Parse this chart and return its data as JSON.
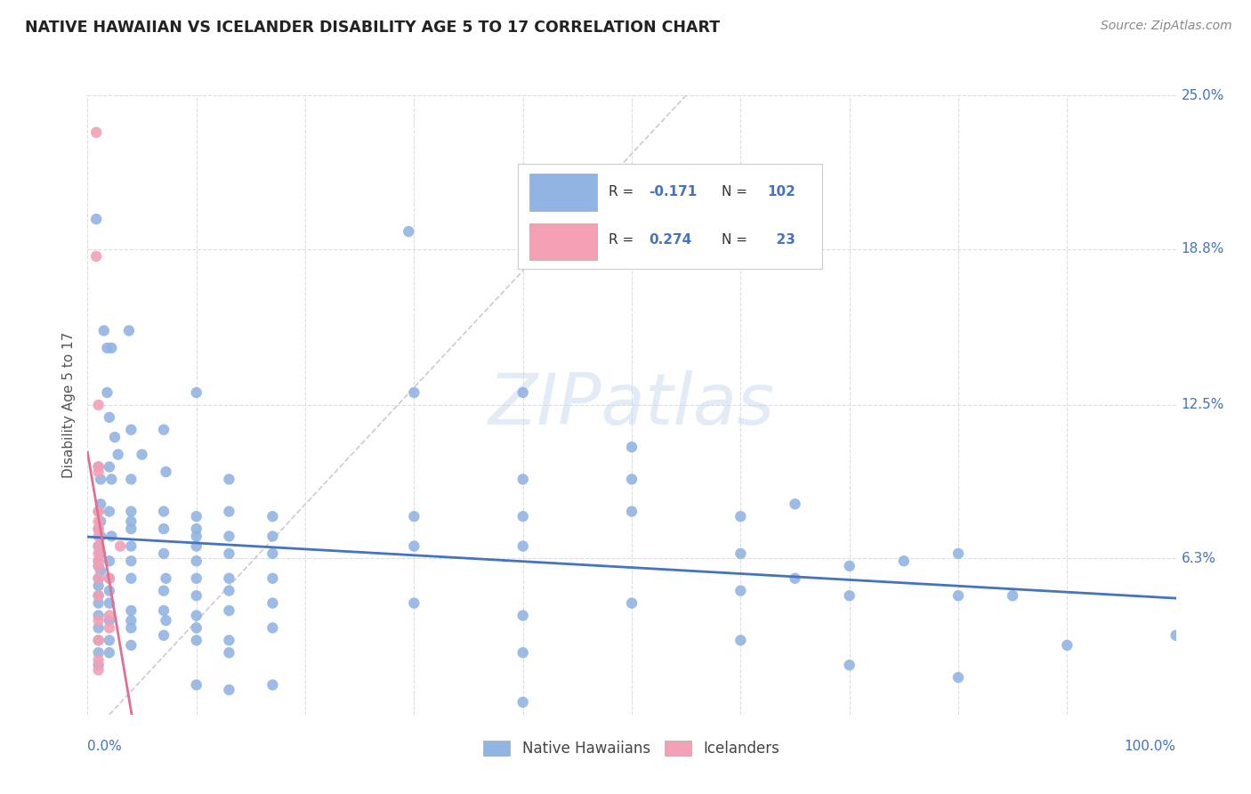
{
  "title": "NATIVE HAWAIIAN VS ICELANDER DISABILITY AGE 5 TO 17 CORRELATION CHART",
  "source": "Source: ZipAtlas.com",
  "ylabel": "Disability Age 5 to 17",
  "xlim": [
    0.0,
    1.0
  ],
  "ylim": [
    0.0,
    0.25
  ],
  "ytick_positions": [
    0.063,
    0.125,
    0.188,
    0.25
  ],
  "ytick_labels": [
    "6.3%",
    "12.5%",
    "18.8%",
    "25.0%"
  ],
  "xtick_positions": [
    0.0,
    0.1,
    0.2,
    0.3,
    0.4,
    0.5,
    0.6,
    0.7,
    0.8,
    0.9,
    1.0
  ],
  "legend_entries": [
    "Native Hawaiians",
    "Icelanders"
  ],
  "blue_color": "#92b4e3",
  "pink_color": "#f4a0b5",
  "blue_line_color": "#4472c4",
  "pink_line_color": "#e07090",
  "diag_color": "#cccccc",
  "grid_color": "#dddddd",
  "watermark": "ZIPatlas",
  "watermark_color": "#c8d8f0",
  "background_color": "#ffffff",
  "blue_scatter": [
    [
      0.008,
      0.2
    ],
    [
      0.015,
      0.155
    ],
    [
      0.018,
      0.148
    ],
    [
      0.022,
      0.148
    ],
    [
      0.018,
      0.13
    ],
    [
      0.02,
      0.12
    ],
    [
      0.025,
      0.112
    ],
    [
      0.028,
      0.105
    ],
    [
      0.01,
      0.1
    ],
    [
      0.02,
      0.1
    ],
    [
      0.012,
      0.095
    ],
    [
      0.022,
      0.095
    ],
    [
      0.012,
      0.085
    ],
    [
      0.01,
      0.082
    ],
    [
      0.02,
      0.082
    ],
    [
      0.012,
      0.078
    ],
    [
      0.01,
      0.075
    ],
    [
      0.012,
      0.072
    ],
    [
      0.022,
      0.072
    ],
    [
      0.01,
      0.068
    ],
    [
      0.012,
      0.065
    ],
    [
      0.01,
      0.062
    ],
    [
      0.02,
      0.062
    ],
    [
      0.01,
      0.06
    ],
    [
      0.012,
      0.058
    ],
    [
      0.01,
      0.055
    ],
    [
      0.02,
      0.055
    ],
    [
      0.01,
      0.052
    ],
    [
      0.02,
      0.05
    ],
    [
      0.01,
      0.048
    ],
    [
      0.01,
      0.045
    ],
    [
      0.02,
      0.045
    ],
    [
      0.01,
      0.04
    ],
    [
      0.02,
      0.038
    ],
    [
      0.01,
      0.035
    ],
    [
      0.01,
      0.03
    ],
    [
      0.02,
      0.03
    ],
    [
      0.01,
      0.025
    ],
    [
      0.02,
      0.025
    ],
    [
      0.01,
      0.02
    ],
    [
      0.038,
      0.155
    ],
    [
      0.04,
      0.115
    ],
    [
      0.04,
      0.095
    ],
    [
      0.04,
      0.082
    ],
    [
      0.04,
      0.078
    ],
    [
      0.04,
      0.075
    ],
    [
      0.04,
      0.068
    ],
    [
      0.04,
      0.062
    ],
    [
      0.04,
      0.055
    ],
    [
      0.04,
      0.042
    ],
    [
      0.04,
      0.038
    ],
    [
      0.04,
      0.035
    ],
    [
      0.04,
      0.028
    ],
    [
      0.05,
      0.105
    ],
    [
      0.07,
      0.115
    ],
    [
      0.072,
      0.098
    ],
    [
      0.07,
      0.082
    ],
    [
      0.07,
      0.075
    ],
    [
      0.07,
      0.065
    ],
    [
      0.072,
      0.055
    ],
    [
      0.07,
      0.05
    ],
    [
      0.07,
      0.042
    ],
    [
      0.072,
      0.038
    ],
    [
      0.07,
      0.032
    ],
    [
      0.1,
      0.13
    ],
    [
      0.1,
      0.08
    ],
    [
      0.1,
      0.075
    ],
    [
      0.1,
      0.072
    ],
    [
      0.1,
      0.068
    ],
    [
      0.1,
      0.062
    ],
    [
      0.1,
      0.055
    ],
    [
      0.1,
      0.048
    ],
    [
      0.1,
      0.04
    ],
    [
      0.1,
      0.035
    ],
    [
      0.1,
      0.03
    ],
    [
      0.1,
      0.012
    ],
    [
      0.13,
      0.095
    ],
    [
      0.13,
      0.082
    ],
    [
      0.13,
      0.072
    ],
    [
      0.13,
      0.065
    ],
    [
      0.13,
      0.055
    ],
    [
      0.13,
      0.05
    ],
    [
      0.13,
      0.042
    ],
    [
      0.13,
      0.03
    ],
    [
      0.13,
      0.025
    ],
    [
      0.13,
      0.01
    ],
    [
      0.17,
      0.08
    ],
    [
      0.17,
      0.072
    ],
    [
      0.17,
      0.065
    ],
    [
      0.17,
      0.055
    ],
    [
      0.17,
      0.045
    ],
    [
      0.17,
      0.035
    ],
    [
      0.17,
      0.012
    ],
    [
      0.295,
      0.195
    ],
    [
      0.3,
      0.13
    ],
    [
      0.3,
      0.08
    ],
    [
      0.3,
      0.068
    ],
    [
      0.3,
      0.045
    ],
    [
      0.4,
      0.13
    ],
    [
      0.4,
      0.095
    ],
    [
      0.4,
      0.08
    ],
    [
      0.4,
      0.068
    ],
    [
      0.4,
      0.04
    ],
    [
      0.4,
      0.025
    ],
    [
      0.4,
      0.005
    ],
    [
      0.5,
      0.108
    ],
    [
      0.5,
      0.095
    ],
    [
      0.5,
      0.082
    ],
    [
      0.5,
      0.045
    ],
    [
      0.6,
      0.08
    ],
    [
      0.6,
      0.065
    ],
    [
      0.6,
      0.05
    ],
    [
      0.6,
      0.03
    ],
    [
      0.65,
      0.085
    ],
    [
      0.65,
      0.055
    ],
    [
      0.7,
      0.06
    ],
    [
      0.7,
      0.048
    ],
    [
      0.7,
      0.02
    ],
    [
      0.75,
      0.062
    ],
    [
      0.8,
      0.065
    ],
    [
      0.8,
      0.048
    ],
    [
      0.8,
      0.015
    ],
    [
      0.85,
      0.048
    ],
    [
      0.9,
      0.028
    ],
    [
      1.0,
      0.032
    ]
  ],
  "pink_scatter": [
    [
      0.008,
      0.235
    ],
    [
      0.008,
      0.185
    ],
    [
      0.01,
      0.125
    ],
    [
      0.01,
      0.1
    ],
    [
      0.01,
      0.098
    ],
    [
      0.01,
      0.082
    ],
    [
      0.01,
      0.078
    ],
    [
      0.01,
      0.075
    ],
    [
      0.01,
      0.072
    ],
    [
      0.01,
      0.068
    ],
    [
      0.01,
      0.065
    ],
    [
      0.01,
      0.062
    ],
    [
      0.01,
      0.06
    ],
    [
      0.01,
      0.055
    ],
    [
      0.02,
      0.055
    ],
    [
      0.01,
      0.048
    ],
    [
      0.02,
      0.04
    ],
    [
      0.01,
      0.038
    ],
    [
      0.02,
      0.035
    ],
    [
      0.01,
      0.03
    ],
    [
      0.01,
      0.022
    ],
    [
      0.01,
      0.018
    ],
    [
      0.03,
      0.068
    ]
  ]
}
